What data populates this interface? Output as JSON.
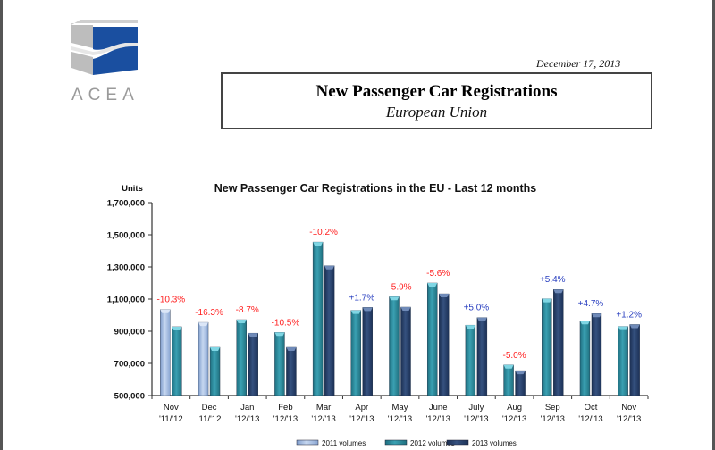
{
  "header": {
    "logo_text": "ACEA",
    "date": "December 17, 2013",
    "title": "New Passenger Car Registrations",
    "subtitle": "European Union"
  },
  "colors": {
    "series_2011": "#a8c1e6",
    "series_2012": "#2f8fa0",
    "series_2013": "#27406b",
    "negative": "#ff2020",
    "positive": "#2a40c0",
    "logo_blue": "#1a4fa0",
    "logo_grey": "#bdbdbd"
  },
  "chart_data": {
    "type": "bar",
    "title": "New Passenger Car Registrations in the EU - Last 12 months",
    "ylabel": "Units",
    "xlabel": "",
    "ylim": [
      500000,
      1700000
    ],
    "yticks": [
      500000,
      700000,
      900000,
      1100000,
      1300000,
      1500000,
      1700000
    ],
    "ytick_labels": [
      "500,000",
      "700,000",
      "900,000",
      "1,100,000",
      "1,300,000",
      "1,500,000",
      "1,700,000"
    ],
    "grid": false,
    "legend_position": "bottom",
    "categories": [
      {
        "month": "Nov",
        "years": "'11/'12"
      },
      {
        "month": "Dec",
        "years": "'11/'12"
      },
      {
        "month": "Jan",
        "years": "'12/'13"
      },
      {
        "month": "Feb",
        "years": "'12/'13"
      },
      {
        "month": "Mar",
        "years": "'12/'13"
      },
      {
        "month": "Apr",
        "years": "'12/'13"
      },
      {
        "month": "May",
        "years": "'12/'13"
      },
      {
        "month": "June",
        "years": "'12/'13"
      },
      {
        "month": "July",
        "years": "'12/'13"
      },
      {
        "month": "Aug",
        "years": "'12/'13"
      },
      {
        "month": "Sep",
        "years": "'12/'13"
      },
      {
        "month": "Oct",
        "years": "'12/'13"
      },
      {
        "month": "Nov",
        "years": "'12/'13"
      }
    ],
    "bars": [
      [
        {
          "series": "2011",
          "value": 1035000
        },
        {
          "series": "2012",
          "value": 928000
        }
      ],
      [
        {
          "series": "2011",
          "value": 955000
        },
        {
          "series": "2012",
          "value": 800000
        }
      ],
      [
        {
          "series": "2012",
          "value": 972000
        },
        {
          "series": "2013",
          "value": 888000
        }
      ],
      [
        {
          "series": "2012",
          "value": 893000
        },
        {
          "series": "2013",
          "value": 800000
        }
      ],
      [
        {
          "series": "2012",
          "value": 1455000
        },
        {
          "series": "2013",
          "value": 1307000
        }
      ],
      [
        {
          "series": "2012",
          "value": 1030000
        },
        {
          "series": "2013",
          "value": 1048000
        }
      ],
      [
        {
          "series": "2012",
          "value": 1115000
        },
        {
          "series": "2013",
          "value": 1050000
        }
      ],
      [
        {
          "series": "2012",
          "value": 1200000
        },
        {
          "series": "2013",
          "value": 1133000
        }
      ],
      [
        {
          "series": "2012",
          "value": 938000
        },
        {
          "series": "2013",
          "value": 985000
        }
      ],
      [
        {
          "series": "2012",
          "value": 690000
        },
        {
          "series": "2013",
          "value": 655000
        }
      ],
      [
        {
          "series": "2012",
          "value": 1102000
        },
        {
          "series": "2013",
          "value": 1160000
        }
      ],
      [
        {
          "series": "2012",
          "value": 965000
        },
        {
          "series": "2013",
          "value": 1010000
        }
      ],
      [
        {
          "series": "2012",
          "value": 930000
        },
        {
          "series": "2013",
          "value": 942000
        }
      ]
    ],
    "annotations": [
      "-10.3%",
      "-16.3%",
      "-8.7%",
      "-10.5%",
      "-10.2%",
      "+1.7%",
      "-5.9%",
      "-5.6%",
      "+5.0%",
      "-5.0%",
      "+5.4%",
      "+4.7%",
      "+1.2%"
    ],
    "legend": [
      {
        "series": "2011",
        "label": "2011 volumes"
      },
      {
        "series": "2012",
        "label": "2012 volumes"
      },
      {
        "series": "2013",
        "label": "2013 volumes"
      }
    ]
  }
}
